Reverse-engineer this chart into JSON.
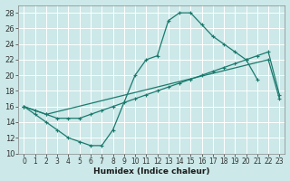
{
  "bg_color": "#cce8e8",
  "grid_color": "#b8d8d8",
  "line_color": "#1a7a6e",
  "xlabel": "Humidex (Indice chaleur)",
  "ylim": [
    10,
    29
  ],
  "xlim": [
    -0.5,
    23.5
  ],
  "yticks": [
    10,
    12,
    14,
    16,
    18,
    20,
    22,
    24,
    26,
    28
  ],
  "xticks": [
    0,
    1,
    2,
    3,
    4,
    5,
    6,
    7,
    8,
    9,
    10,
    11,
    12,
    13,
    14,
    15,
    16,
    17,
    18,
    19,
    20,
    21,
    22,
    23
  ],
  "series": [
    {
      "x": [
        0,
        1,
        2,
        3,
        4,
        5,
        6,
        7,
        8,
        10,
        11,
        12,
        13,
        14,
        15,
        16,
        17,
        18,
        19,
        20,
        21
      ],
      "y": [
        16,
        15,
        14,
        13,
        12,
        11.5,
        11,
        11,
        13,
        20,
        22,
        22.5,
        27,
        28,
        28,
        26.5,
        25,
        24,
        23,
        22,
        19.5
      ]
    },
    {
      "x": [
        0,
        2,
        22,
        23
      ],
      "y": [
        16,
        15,
        22,
        17
      ]
    },
    {
      "x": [
        0,
        1,
        2,
        3,
        4,
        5,
        6,
        7,
        8,
        9,
        10,
        11,
        12,
        13,
        14,
        15,
        16,
        17,
        18,
        19,
        20,
        21,
        22,
        23
      ],
      "y": [
        16,
        15.5,
        15,
        14.5,
        14.5,
        14.5,
        15,
        15.5,
        16,
        16.5,
        17,
        17.5,
        18,
        18.5,
        19,
        19.5,
        20,
        20.5,
        21,
        21.5,
        22,
        22.5,
        23,
        17.5
      ]
    }
  ]
}
